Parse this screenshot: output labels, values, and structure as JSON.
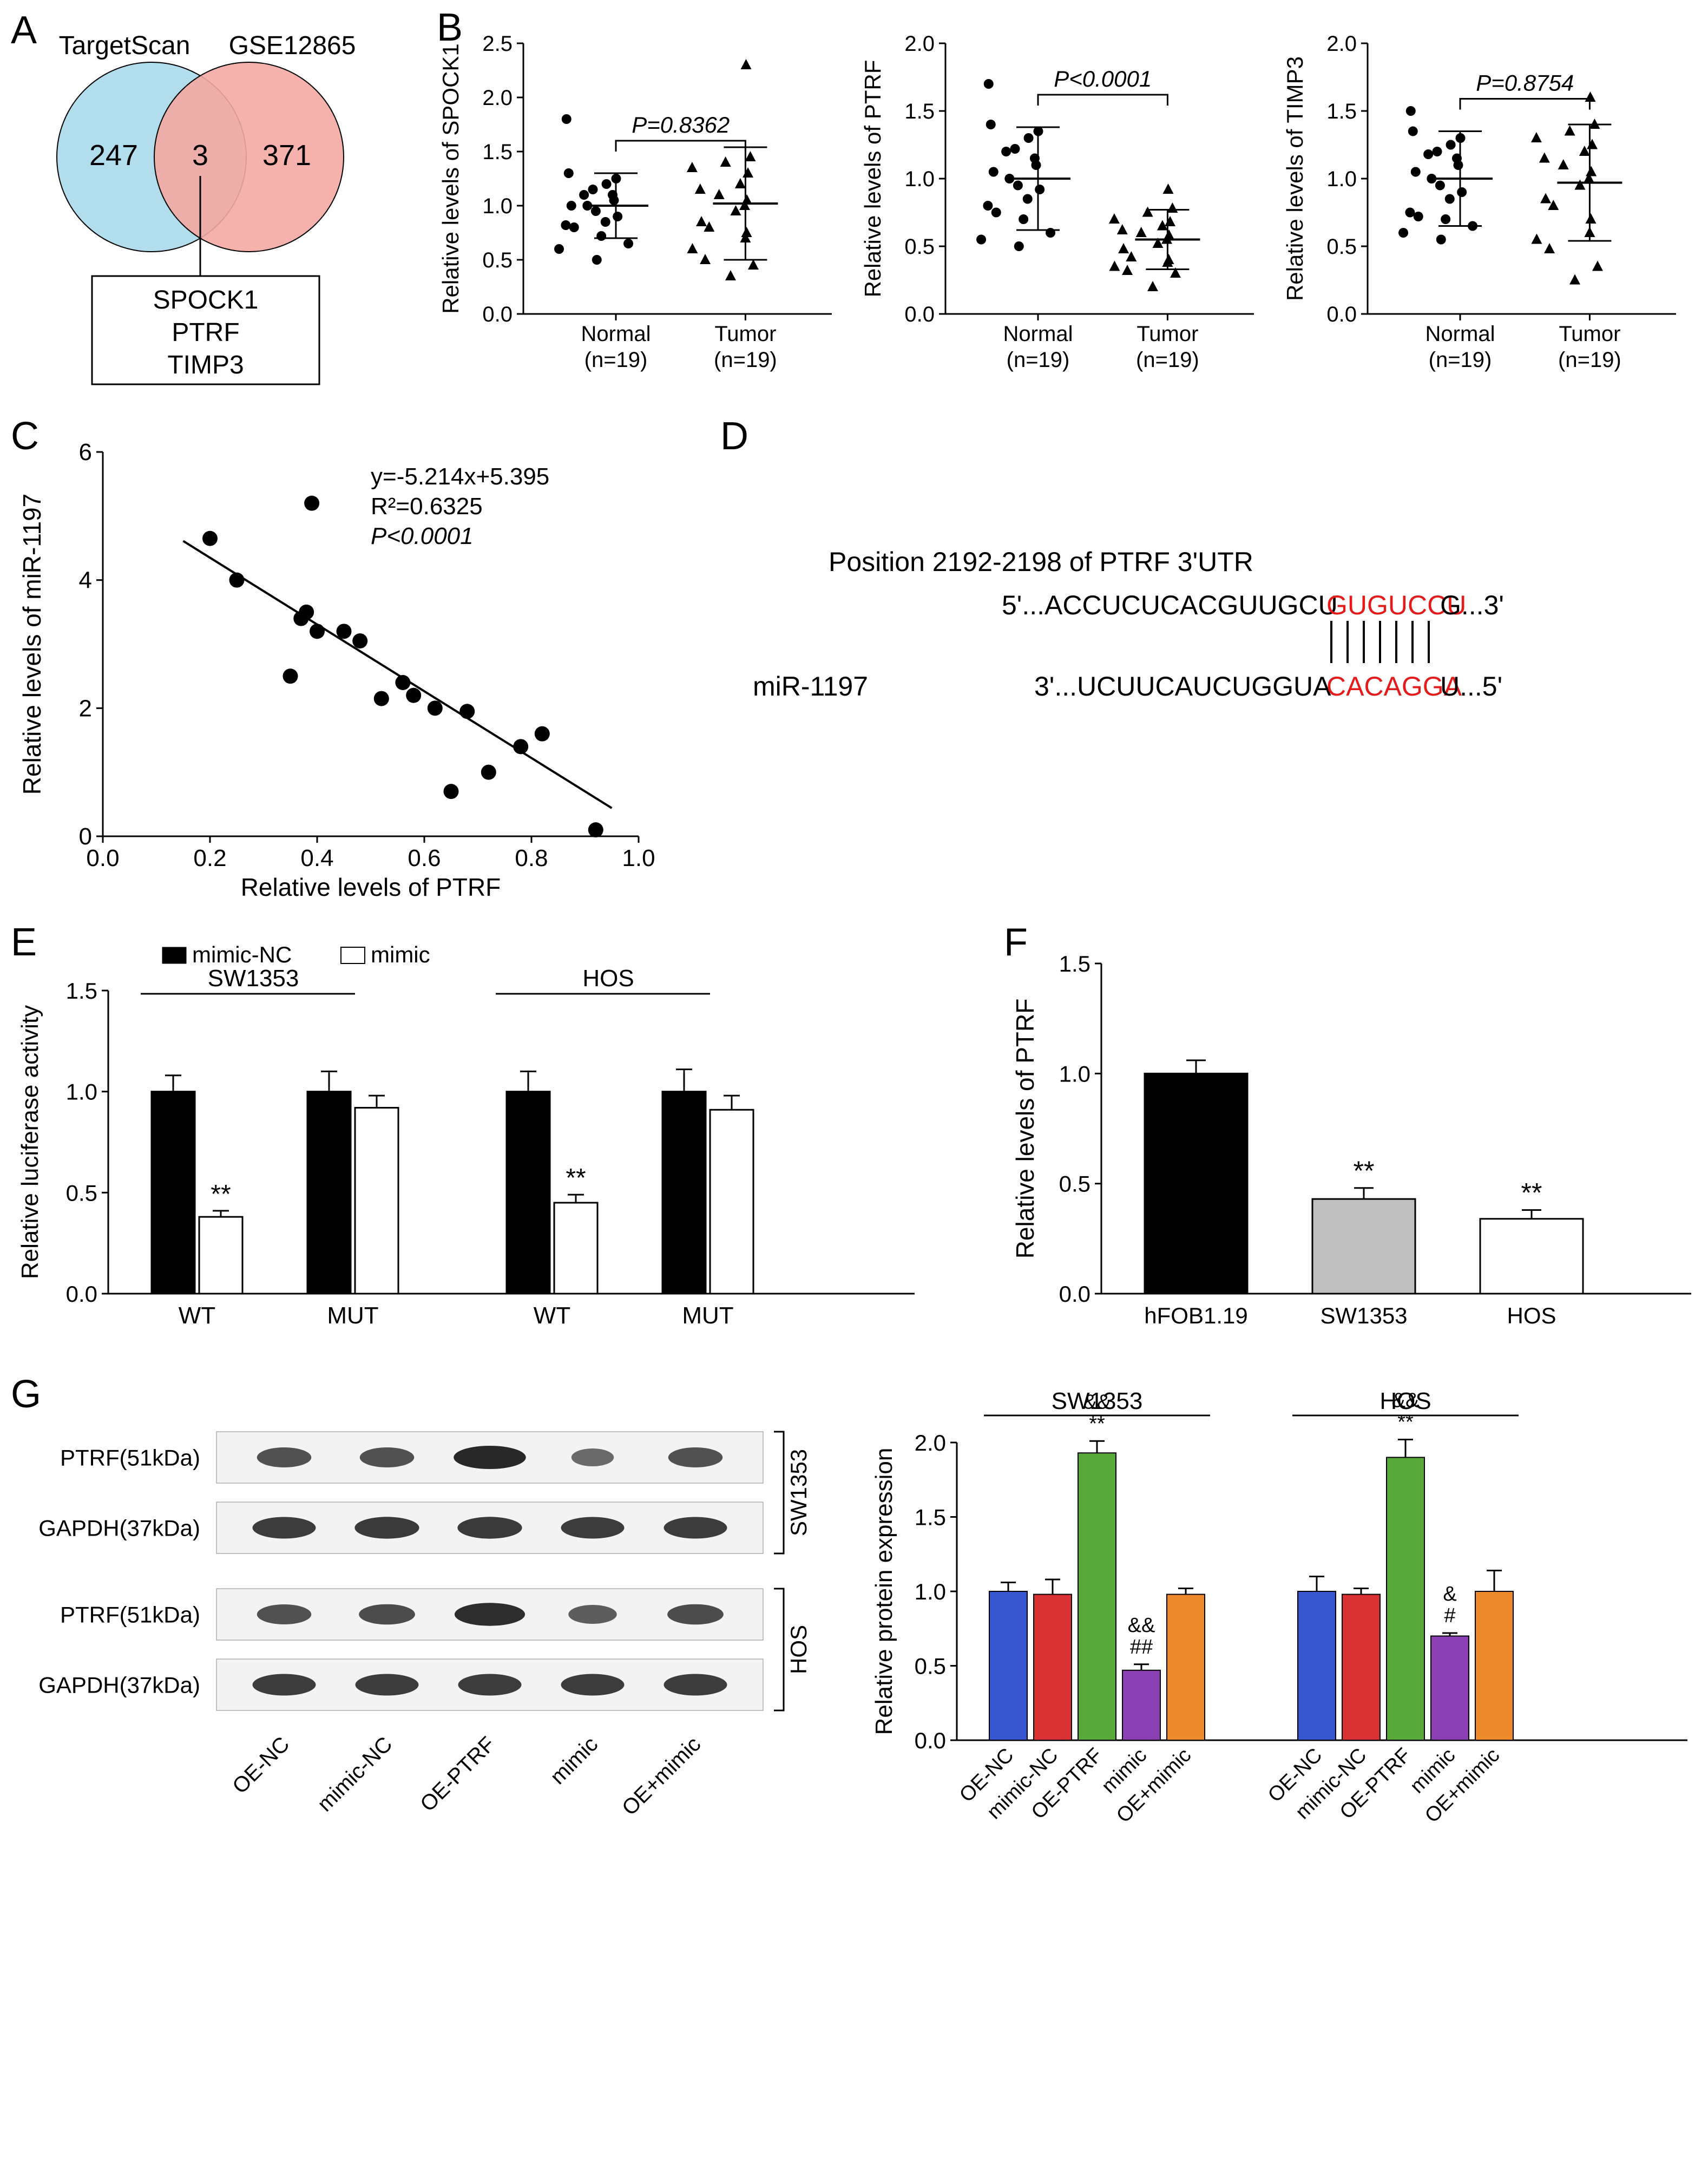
{
  "panelA": {
    "label": "A",
    "left_label": "TargetScan",
    "right_label": "GSE12865",
    "left_only": 247,
    "intersection": 3,
    "right_only": 371,
    "genes": [
      "SPOCK1",
      "PTRF",
      "TIMP3"
    ],
    "left_color": "#a9d9ea",
    "right_color": "#f4a9a3",
    "n_label_fontsize": 48
  },
  "panelB": {
    "label": "B",
    "charts": [
      {
        "ylabel": "Relative levels of SPOCK1",
        "pvalue": "P=0.8362",
        "ylim": [
          0,
          2.5
        ],
        "ytick_step": 0.5,
        "categories": [
          "Normal\n(n=19)",
          "Tumor\n(n=19)"
        ],
        "means": [
          1.0,
          1.02
        ],
        "sds": [
          0.3,
          0.52
        ],
        "normal_points": [
          0.5,
          0.6,
          0.65,
          0.72,
          0.8,
          0.82,
          0.85,
          0.9,
          0.95,
          1.0,
          1.0,
          1.05,
          1.1,
          1.1,
          1.15,
          1.2,
          1.25,
          1.3,
          1.8
        ],
        "tumor_points": [
          0.35,
          0.45,
          0.5,
          0.6,
          0.7,
          0.75,
          0.8,
          0.85,
          0.95,
          1.0,
          1.05,
          1.1,
          1.15,
          1.2,
          1.3,
          1.35,
          1.4,
          1.45,
          2.3
        ]
      },
      {
        "ylabel": "Relative levels of PTRF",
        "pvalue": "P<0.0001",
        "ylim": [
          0,
          2.0
        ],
        "ytick_step": 0.5,
        "categories": [
          "Normal\n(n=19)",
          "Tumor\n(n=19)"
        ],
        "means": [
          1.0,
          0.55
        ],
        "sds": [
          0.38,
          0.22
        ],
        "normal_points": [
          0.5,
          0.55,
          0.6,
          0.7,
          0.75,
          0.8,
          0.85,
          0.92,
          0.95,
          1.0,
          1.05,
          1.1,
          1.15,
          1.2,
          1.22,
          1.3,
          1.35,
          1.4,
          1.7
        ],
        "tumor_points": [
          0.2,
          0.3,
          0.32,
          0.35,
          0.38,
          0.4,
          0.42,
          0.48,
          0.52,
          0.55,
          0.58,
          0.6,
          0.62,
          0.65,
          0.68,
          0.7,
          0.75,
          0.78,
          0.92
        ]
      },
      {
        "ylabel": "Relative levels of TIMP3",
        "pvalue": "P=0.8754",
        "ylim": [
          0,
          2.0
        ],
        "ytick_step": 0.5,
        "categories": [
          "Normal\n(n=19)",
          "Tumor\n(n=19)"
        ],
        "means": [
          1.0,
          0.97
        ],
        "sds": [
          0.35,
          0.43
        ],
        "normal_points": [
          0.55,
          0.6,
          0.65,
          0.7,
          0.72,
          0.75,
          0.85,
          0.9,
          0.95,
          1.0,
          1.05,
          1.1,
          1.15,
          1.18,
          1.2,
          1.25,
          1.3,
          1.35,
          1.5
        ],
        "tumor_points": [
          0.25,
          0.35,
          0.48,
          0.55,
          0.6,
          0.7,
          0.8,
          0.85,
          0.95,
          1.0,
          1.05,
          1.1,
          1.15,
          1.2,
          1.25,
          1.3,
          1.35,
          1.4,
          1.6
        ]
      }
    ],
    "label_fontsize": 40,
    "tick_fontsize": 40
  },
  "panelC": {
    "label": "C",
    "xlabel": "Relative levels of PTRF",
    "ylabel": "Relative levels of miR-1197",
    "equation": "y=-5.214x+5.395",
    "r2": "R²=0.6325",
    "pvalue": "P<0.0001",
    "xlim": [
      0,
      1.0
    ],
    "xtick_step": 0.2,
    "ylim": [
      0,
      6
    ],
    "ytick_step": 2,
    "points": [
      [
        0.2,
        4.65
      ],
      [
        0.25,
        4.0
      ],
      [
        0.35,
        2.5
      ],
      [
        0.37,
        3.4
      ],
      [
        0.38,
        3.5
      ],
      [
        0.39,
        5.2
      ],
      [
        0.4,
        3.2
      ],
      [
        0.45,
        3.2
      ],
      [
        0.48,
        3.05
      ],
      [
        0.52,
        2.15
      ],
      [
        0.56,
        2.4
      ],
      [
        0.58,
        2.2
      ],
      [
        0.62,
        2.0
      ],
      [
        0.65,
        0.7
      ],
      [
        0.68,
        1.95
      ],
      [
        0.72,
        1.0
      ],
      [
        0.78,
        1.4
      ],
      [
        0.82,
        1.6
      ],
      [
        0.92,
        0.1
      ]
    ],
    "line_start": [
      0.15,
      4.61
    ],
    "line_end": [
      0.95,
      0.44
    ]
  },
  "panelD": {
    "label": "D",
    "header": "Position 2192-2198 of PTRF 3'UTR",
    "top_prefix": "5'...ACCUCUCACGUUGCU",
    "top_seed": "GUGUCCU",
    "top_suffix": "G...3'",
    "bottom_label": "miR-1197",
    "bottom_prefix": "3'...UCUUCAUCUGGUA",
    "bottom_seed": "CACAGGA",
    "bottom_suffix": "U...5'",
    "seed_color": "#e31b1b",
    "font_size": 50
  },
  "panelE": {
    "label": "E",
    "ylabel": "Relative luciferase activity",
    "ylim": [
      0,
      1.5
    ],
    "ytick_step": 0.5,
    "legend": [
      "mimic-NC",
      "mimic"
    ],
    "cell_lines": [
      "SW1353",
      "HOS"
    ],
    "groups": [
      "WT",
      "MUT"
    ],
    "data": {
      "SW1353": {
        "WT": {
          "mimic-NC": [
            1.0,
            0.08
          ],
          "mimic": [
            0.38,
            0.03
          ]
        },
        "MUT": {
          "mimic-NC": [
            1.0,
            0.1
          ],
          "mimic": [
            0.92,
            0.06
          ]
        }
      },
      "HOS": {
        "WT": {
          "mimic-NC": [
            1.0,
            0.1
          ],
          "mimic": [
            0.45,
            0.04
          ]
        },
        "MUT": {
          "mimic-NC": [
            1.0,
            0.11
          ],
          "mimic": [
            0.91,
            0.07
          ]
        }
      }
    },
    "sig_marks": [
      {
        "pos": "SW1353.WT.mimic",
        "label": "**"
      },
      {
        "pos": "HOS.WT.mimic",
        "label": "**"
      }
    ],
    "colors": {
      "mimic-NC": "#000000",
      "mimic": "#ffffff"
    }
  },
  "panelF": {
    "label": "F",
    "ylabel": "Relative levels of PTRF",
    "ylim": [
      0,
      1.5
    ],
    "ytick_step": 0.5,
    "categories": [
      "hFOB1.19",
      "SW1353",
      "HOS"
    ],
    "values": [
      1.0,
      0.43,
      0.34
    ],
    "errors": [
      0.06,
      0.05,
      0.04
    ],
    "colors": [
      "#000000",
      "#bfbfbf",
      "#ffffff"
    ],
    "sig": [
      "",
      "**",
      "**"
    ]
  },
  "panelG": {
    "label": "G",
    "blot_rows": [
      {
        "label": "PTRF(51kDa)",
        "side": "SW1353"
      },
      {
        "label": "GAPDH(37kDa)",
        "side": "SW1353"
      },
      {
        "label": "PTRF(51kDa)",
        "side": "HOS"
      },
      {
        "label": "GAPDH(37kDa)",
        "side": "HOS"
      }
    ],
    "blot_lanes": [
      "OE-NC",
      "mimic-NC",
      "OE-PTRF",
      "mimic",
      "OE+mimic"
    ],
    "chart": {
      "ylabel": "Relative protein expression",
      "ylim": [
        0,
        2.0
      ],
      "ytick_step": 0.5,
      "cell_lines": [
        "SW1353",
        "HOS"
      ],
      "categories": [
        "OE-NC",
        "mimic-NC",
        "OE-PTRF",
        "mimic",
        "OE+mimic"
      ],
      "colors": {
        "OE-NC": "#3656cf",
        "mimic-NC": "#d93235",
        "OE-PTRF": "#58a83a",
        "mimic": "#8a3fb3",
        "OE+mimic": "#ed8a2c"
      },
      "data": {
        "SW1353": {
          "OE-NC": [
            1.0,
            0.06
          ],
          "mimic-NC": [
            0.98,
            0.1
          ],
          "OE-PTRF": [
            1.93,
            0.08
          ],
          "mimic": [
            0.47,
            0.04
          ],
          "OE+mimic": [
            0.98,
            0.04
          ]
        },
        "HOS": {
          "OE-NC": [
            1.0,
            0.1
          ],
          "mimic-NC": [
            0.98,
            0.04
          ],
          "OE-PTRF": [
            1.9,
            0.12
          ],
          "mimic": [
            0.7,
            0.02
          ],
          "OE+mimic": [
            1.0,
            0.14
          ]
        }
      },
      "sig": {
        "SW1353": {
          "OE-PTRF": "&&\n**",
          "mimic": "&&\n##"
        },
        "HOS": {
          "OE-PTRF": "&&\n**",
          "mimic": "&\n#"
        }
      }
    }
  }
}
